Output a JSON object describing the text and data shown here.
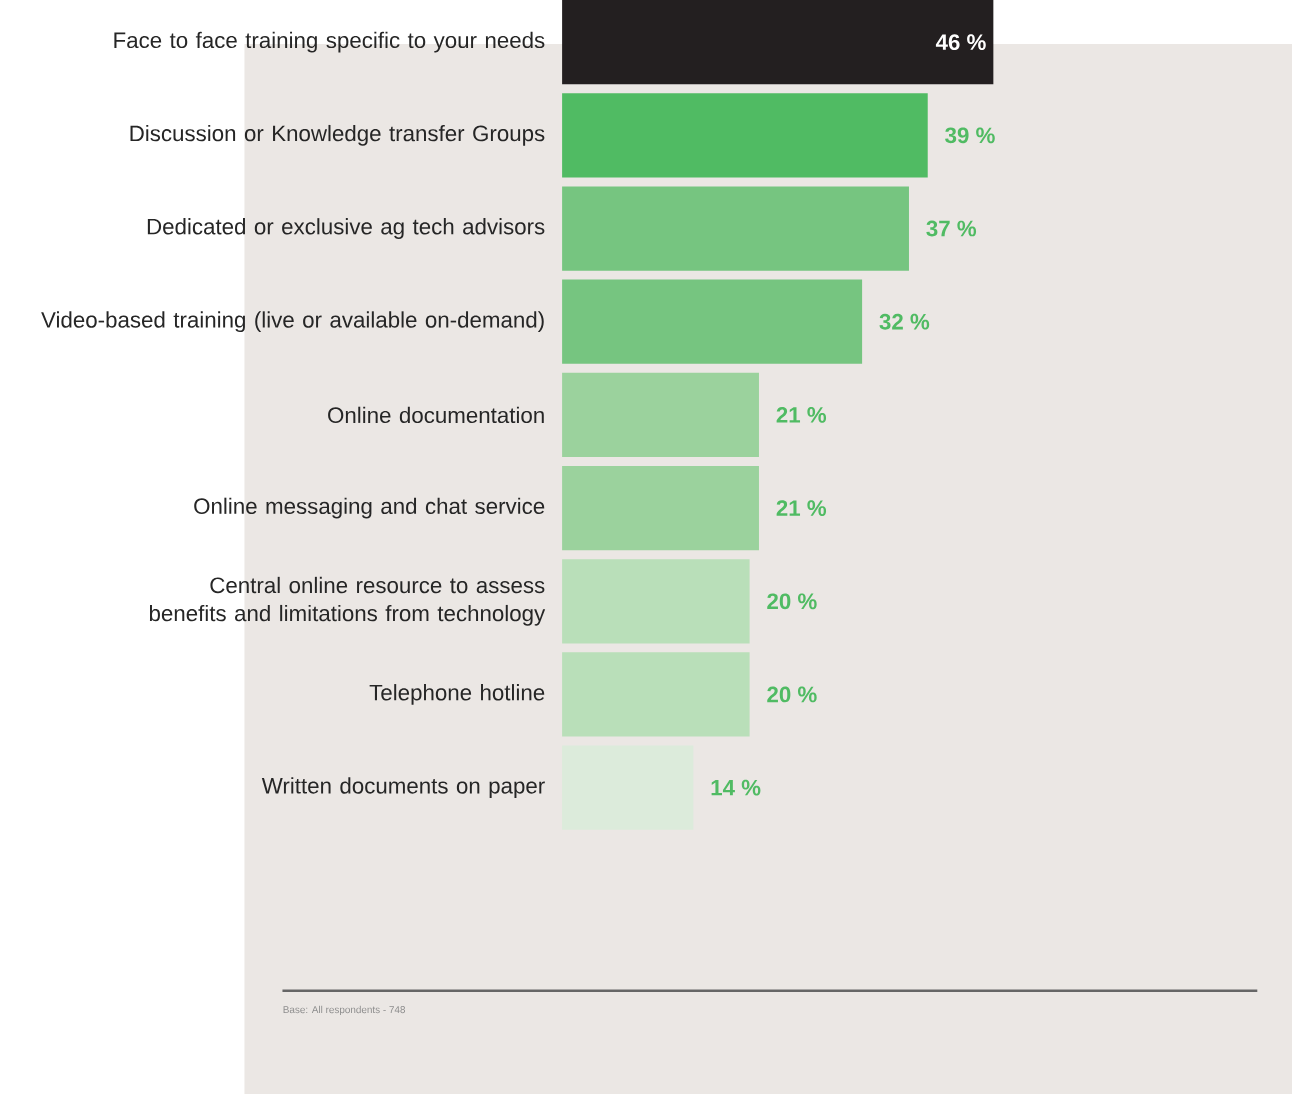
{
  "chart_data": {
    "type": "bar",
    "orientation": "horizontal",
    "categories": [
      "Face to face training specific to your needs",
      "Discussion or Knowledge transfer Groups",
      "Dedicated or exclusive ag tech advisors",
      "Video-based training (live or available on-demand)",
      "Online documentation",
      "Online messaging and chat service",
      "Central online resource to assess benefits and limitations from technology",
      "Telephone hotline",
      "Written documents on paper"
    ],
    "values": [
      46,
      39,
      37,
      32,
      21,
      21,
      20,
      20,
      14
    ],
    "colors": [
      "#231f20",
      "#50bb63",
      "#76c580",
      "#76c580",
      "#9bd29d",
      "#9bd29d",
      "#b9dfb9",
      "#b9dfb9",
      "#dcebdb"
    ],
    "value_labels": [
      "46 %",
      "39 %",
      "37 %",
      "32 %",
      "21 %",
      "21 %",
      "20 %",
      "20 %",
      "14 %"
    ],
    "annotations": [
      "Base: All respondents - 748"
    ]
  }
}
